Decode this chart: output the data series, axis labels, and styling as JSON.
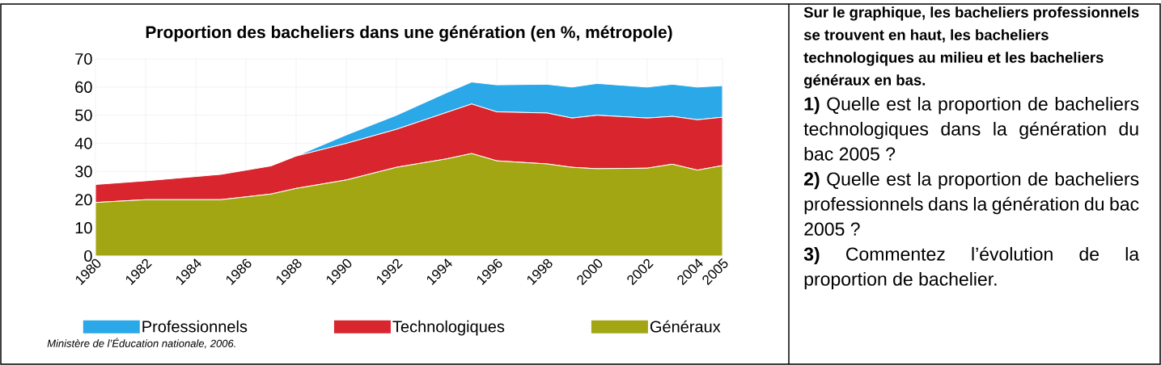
{
  "chart_data": [
    {
      "type": "area",
      "stacked": true,
      "title": "Proportion des bacheliers dans une génération (en %, métropole)",
      "x": [
        1980,
        1982,
        1985,
        1987,
        1988,
        1990,
        1992,
        1994,
        1995,
        1996,
        1998,
        1999,
        2000,
        2002,
        2003,
        2004,
        2005
      ],
      "series": [
        {
          "name": "Généraux",
          "color": "#a2a613",
          "values": [
            19,
            20,
            20,
            22,
            24,
            27,
            31.5,
            34.5,
            36.4,
            33.8,
            32.7,
            31.5,
            31,
            31.2,
            32.6,
            30.5,
            32.1
          ]
        },
        {
          "name": "Technologiques",
          "color": "#d9262e",
          "values": [
            6.4,
            6.7,
            9,
            10,
            11.5,
            13,
            13.5,
            16.5,
            17.6,
            17.4,
            18.1,
            17.5,
            19,
            17.8,
            17,
            17.9,
            17.2
          ]
        },
        {
          "name": "Professionnels",
          "color": "#2aa8e8",
          "values": [
            0,
            0,
            0,
            0,
            0,
            3,
            5,
            7,
            7.8,
            9.6,
            10.2,
            11,
            11.3,
            11,
            11.4,
            11.6,
            11.2
          ]
        }
      ],
      "xlim": [
        1980,
        2005
      ],
      "ylim": [
        0,
        70
      ],
      "xticks": [
        1980,
        1982,
        1984,
        1986,
        1988,
        1990,
        1992,
        1994,
        1996,
        1998,
        2000,
        2002,
        2004,
        2005
      ],
      "yticks": [
        0,
        10,
        20,
        30,
        40,
        50,
        60,
        70
      ],
      "grid": true,
      "legend": "bottom",
      "annotations": [
        "Ministère de l’Éducation nationale, 2006."
      ]
    },
    {
      "type": "other",
      "title": "Sur le graphique, les bacheliers professionnels se trouvent en haut, les bacheliers technologiques au milieu et les bacheliers généraux en bas.",
      "annotations": [
        "**1)** Quelle est la proportion de bacheliers technologiques dans la génération du bac 2005 ?",
        "**2)** Quelle est la proportion de bacheliers professionnels dans la génération du bac 2005 ?",
        "**3)** Commentez l’évolution de la proportion de bachelier."
      ]
    }
  ]
}
